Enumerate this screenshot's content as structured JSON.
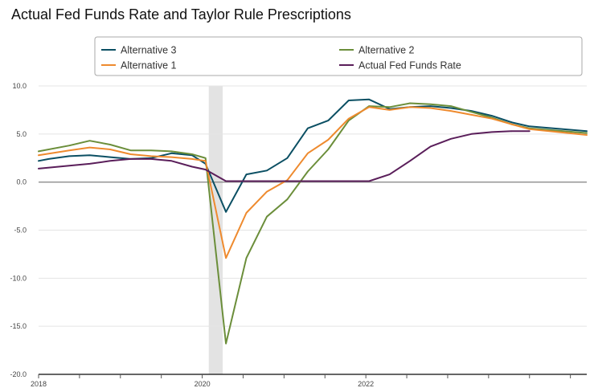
{
  "chart_data": {
    "type": "line",
    "title": "Actual Fed Funds Rate and Taylor Rule Prescriptions",
    "xlabel": "",
    "ylabel": "",
    "ylim": [
      -20,
      10
    ],
    "y_ticks": [
      -20.0,
      -15.0,
      -10.0,
      -5.0,
      0.0,
      5.0,
      10.0
    ],
    "y_tick_labels": [
      "-20.0",
      "-15.0",
      "-10.0",
      "-5.0",
      "0.0",
      "5.0",
      "10.0"
    ],
    "xlim": [
      2018.0,
      2024.7
    ],
    "x_tick_labels": [
      "2018",
      "2020",
      "2022"
    ],
    "x_tick_values": [
      2018.0,
      2020.0,
      2022.0
    ],
    "grid": "horizontal",
    "legend_position": "top",
    "shaded_region": [
      2020.08,
      2020.25
    ],
    "series": [
      {
        "name": "Alternative 3",
        "color": "#0b4f63",
        "x": [
          2018.0,
          2018.125,
          2018.375,
          2018.625,
          2018.875,
          2019.125,
          2019.375,
          2019.625,
          2019.875,
          2020.04,
          2020.29,
          2020.54,
          2020.79,
          2021.04,
          2021.29,
          2021.54,
          2021.79,
          2022.04,
          2022.29,
          2022.54,
          2022.79,
          2023.04,
          2023.29,
          2023.54,
          2023.79,
          2024.0,
          2024.7
        ],
        "values": [
          2.2,
          2.4,
          2.7,
          2.8,
          2.6,
          2.4,
          2.5,
          3.0,
          2.8,
          1.9,
          -3.1,
          0.8,
          1.2,
          2.5,
          5.6,
          6.4,
          8.5,
          8.6,
          7.6,
          7.8,
          7.9,
          7.7,
          7.4,
          6.9,
          6.2,
          5.8,
          5.3
        ]
      },
      {
        "name": "Alternative 2",
        "color": "#6b8e3a",
        "x": [
          2018.0,
          2018.375,
          2018.625,
          2018.875,
          2019.125,
          2019.375,
          2019.625,
          2019.875,
          2020.04,
          2020.29,
          2020.54,
          2020.79,
          2021.04,
          2021.29,
          2021.54,
          2021.79,
          2022.04,
          2022.29,
          2022.54,
          2022.79,
          2023.04,
          2023.29,
          2023.54,
          2023.79,
          2024.0,
          2024.7
        ],
        "values": [
          3.2,
          3.8,
          4.3,
          3.9,
          3.3,
          3.3,
          3.2,
          2.9,
          2.5,
          -16.8,
          -7.9,
          -3.6,
          -1.8,
          1.1,
          3.4,
          6.4,
          7.9,
          7.8,
          8.2,
          8.1,
          7.9,
          7.3,
          6.7,
          6.0,
          5.6,
          5.1
        ]
      },
      {
        "name": "Alternative 1",
        "color": "#ee8a2e",
        "x": [
          2018.0,
          2018.375,
          2018.625,
          2018.875,
          2019.125,
          2019.375,
          2019.625,
          2019.875,
          2020.04,
          2020.29,
          2020.54,
          2020.79,
          2021.04,
          2021.29,
          2021.54,
          2021.79,
          2022.04,
          2022.29,
          2022.54,
          2022.79,
          2023.04,
          2023.29,
          2023.54,
          2023.79,
          2024.0,
          2024.7
        ],
        "values": [
          2.8,
          3.3,
          3.6,
          3.4,
          2.9,
          2.7,
          2.6,
          2.4,
          2.2,
          -7.9,
          -3.2,
          -1.0,
          0.2,
          3.0,
          4.4,
          6.6,
          7.8,
          7.5,
          7.8,
          7.7,
          7.4,
          7.0,
          6.6,
          6.0,
          5.5,
          4.9
        ]
      },
      {
        "name": "Actual Fed Funds Rate",
        "color": "#5a1e5a",
        "x": [
          2018.0,
          2018.375,
          2018.625,
          2018.875,
          2019.125,
          2019.375,
          2019.625,
          2019.875,
          2020.04,
          2020.29,
          2020.54,
          2020.79,
          2021.04,
          2021.29,
          2021.54,
          2021.79,
          2022.04,
          2022.29,
          2022.54,
          2022.79,
          2023.04,
          2023.29,
          2023.54,
          2023.79,
          2024.0
        ],
        "values": [
          1.4,
          1.7,
          1.9,
          2.2,
          2.4,
          2.4,
          2.2,
          1.6,
          1.3,
          0.1,
          0.1,
          0.1,
          0.1,
          0.1,
          0.1,
          0.1,
          0.1,
          0.8,
          2.2,
          3.7,
          4.5,
          5.0,
          5.2,
          5.3,
          5.3
        ]
      }
    ],
    "legend_order": [
      "Alternative 3",
      "Alternative 2",
      "Alternative 1",
      "Actual Fed Funds Rate"
    ]
  }
}
